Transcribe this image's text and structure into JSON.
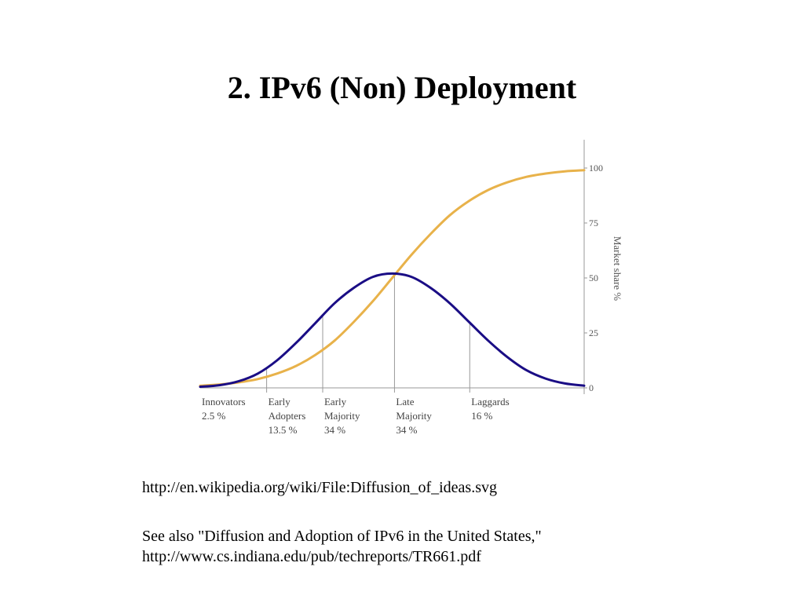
{
  "slide": {
    "title": "2. IPv6 (Non) Deployment"
  },
  "chart_data": {
    "type": "line",
    "x": [
      0,
      5,
      10,
      15,
      20,
      25,
      30,
      35,
      40,
      45,
      50,
      55,
      60,
      65,
      70,
      75,
      80,
      85,
      90,
      95,
      100
    ],
    "series": [
      {
        "color": "#1a0d85",
        "values": [
          0.5,
          1.2,
          3,
          6.5,
          12.5,
          20.5,
          29.5,
          38.5,
          45.5,
          50.5,
          52,
          50.5,
          45.5,
          38.5,
          30,
          21.5,
          14,
          8,
          4.2,
          2,
          1
        ]
      },
      {
        "color": "#e8b24a",
        "values": [
          1,
          1.5,
          2.5,
          4,
          6.5,
          10,
          15,
          21.5,
          30,
          39.5,
          50,
          60.5,
          70,
          78.5,
          85,
          90,
          93.5,
          96,
          97.5,
          98.5,
          99
        ]
      }
    ],
    "ylabel": "Market share %",
    "ylim": [
      0,
      100
    ],
    "yticks": [
      "0",
      "25",
      "50",
      "75",
      "100"
    ],
    "xlim": [
      0,
      100
    ],
    "grid": false,
    "segments": [
      {
        "boundary": 0,
        "label1": "Innovators",
        "label2": "",
        "share": "2.5 %"
      },
      {
        "boundary": 17.3,
        "label1": "Early",
        "label2": "Adopters",
        "share": "13.5 %"
      },
      {
        "boundary": 31.9,
        "label1": "Early",
        "label2": "Majority",
        "share": "34 %"
      },
      {
        "boundary": 50.6,
        "label1": "Late",
        "label2": "Majority",
        "share": "34 %"
      },
      {
        "boundary": 70.2,
        "label1": "Laggards",
        "label2": "",
        "share": "16 %"
      }
    ]
  },
  "captions": {
    "source_url": "http://en.wikipedia.org/wiki/File:Diffusion_of_ideas.svg",
    "see_also": "See also \"Diffusion and Adoption of IPv6 in the United States,\"",
    "see_also_url": "http://www.cs.indiana.edu/pub/techreports/TR661.pdf"
  }
}
